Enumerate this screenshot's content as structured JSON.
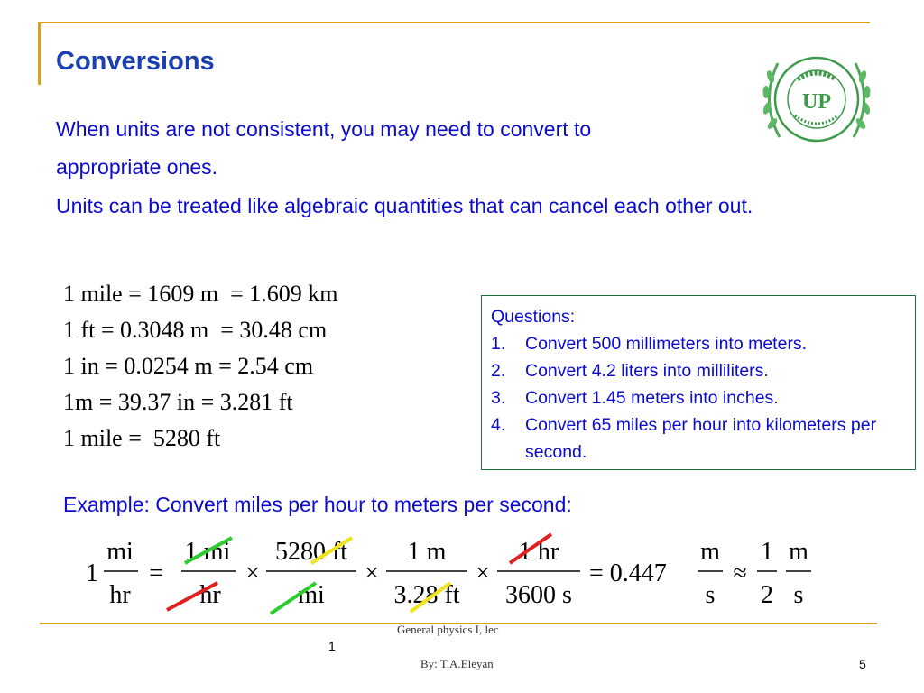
{
  "slide": {
    "title": "Conversions",
    "paragraphs": [
      "When units are not consistent, you may need to convert to",
      "appropriate ones.",
      "Units can be treated like algebraic quantities that can cancel each other out."
    ],
    "equivalences": [
      "1 mile = 1609 m  = 1.609 km",
      "1 ft = 0.3048 m  = 30.48 cm",
      "1 in = 0.0254 m = 2.54 cm",
      "1m = 39.37 in = 3.281 ft",
      "1 mile =  5280 ft"
    ],
    "questions": {
      "heading": "Questions:",
      "items": [
        {
          "num": "1.",
          "text": "Convert 500 millimeters into meters."
        },
        {
          "num": "2.",
          "text": "Convert 4.2 liters into milliliters."
        },
        {
          "num": "3.",
          "text": "Convert 1.45 meters into inches."
        },
        {
          "num": "4.",
          "text": "Convert 65 miles per hour into kilometers per second."
        }
      ]
    },
    "example": "Example:  Convert miles per hour to meters per second:",
    "formula": {
      "lead": "1",
      "f1": {
        "num": "mi",
        "den": "hr"
      },
      "f2": {
        "num": "1 mi",
        "den": "hr"
      },
      "f3": {
        "num": "5280 ft",
        "den": "mi"
      },
      "f4": {
        "num": "1 m",
        "den": "3.28 ft"
      },
      "f5": {
        "num": "1 hr",
        "den": "3600 s"
      },
      "result": "= 0.447",
      "f6": {
        "num": "m",
        "den": "s"
      },
      "approx": "≈",
      "f7": {
        "num": "1",
        "den": "2"
      },
      "f8": {
        "num": "m",
        "den": "s"
      }
    },
    "logo": {
      "text": "UP",
      "ring_text": "UNIVERSITY OF PALESTINE"
    },
    "footer": {
      "course": "General physics I,  lec",
      "lec_num": "1",
      "author": "By: T.A.Eleyan",
      "page": "5"
    }
  }
}
